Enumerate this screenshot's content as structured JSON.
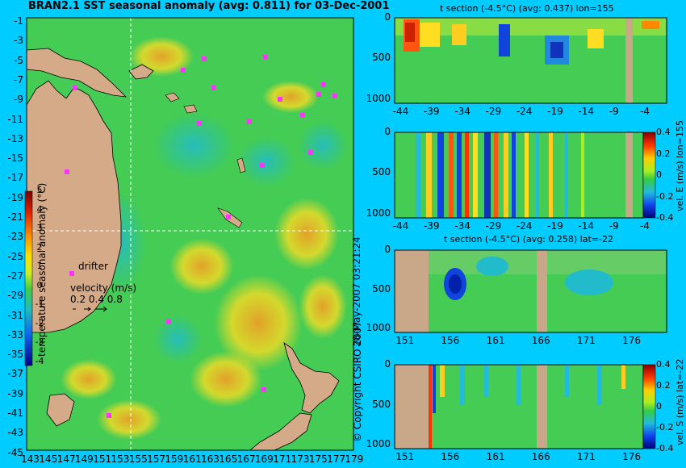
{
  "colors": {
    "background": "#00ccff",
    "land": "#d4aa88",
    "ocean": "#44cc55",
    "warm": "#ffdd22",
    "hot": "#ff5511",
    "cold": "#1144dd",
    "drifter": "#ff33ff",
    "crosshair": "#ffffff"
  },
  "map": {
    "title": "BRAN2.1 SST seasonal anomaly (avg: 0.811) for 03-Dec-2001",
    "lat_labels": [
      "-1",
      "-3",
      "-5",
      "-7",
      "-9",
      "-11",
      "-13",
      "-15",
      "-17",
      "-19",
      "-21",
      "-23",
      "-25",
      "-27",
      "-29",
      "-31",
      "-33",
      "-35",
      "-37",
      "-39",
      "-41",
      "-43",
      "-45"
    ],
    "lon_labels": [
      "143",
      "145",
      "147",
      "149",
      "151",
      "153",
      "155",
      "157",
      "159",
      "161",
      "163",
      "165",
      "167",
      "169",
      "171",
      "173",
      "175",
      "177",
      "179"
    ],
    "colorbar": {
      "label": "temperature seasonal anomaly (°C)",
      "ticks": [
        "5",
        "4",
        "3",
        "2",
        "1",
        "0",
        "-1",
        "-2",
        "-3",
        "-4"
      ],
      "range": [
        -4,
        5
      ]
    },
    "drifter_label": "drifter",
    "velocity_label": "velocity (m/s)",
    "velocity_ticks": "0.2 0.4 0.8",
    "crosshair": {
      "lon": 155,
      "lat": -22
    }
  },
  "side_text": {
    "timestamp": "28-May-2007 03:21:24",
    "copyright": "© Copyright CSIRO 2007"
  },
  "chart_data": [
    {
      "type": "heatmap",
      "title": "t section (-4.5°C) (avg: 0.437) lon=155",
      "x_ticks": [
        "-44",
        "-39",
        "-34",
        "-29",
        "-24",
        "-19",
        "-14",
        "-9",
        "-4"
      ],
      "y_ticks": [
        "0",
        "500",
        "1000"
      ],
      "xlim": [
        -45,
        -1
      ],
      "ylim": [
        1050,
        0
      ],
      "colorbar_label": "",
      "land_columns": [
        [
          -6.5,
          -5.0
        ]
      ]
    },
    {
      "type": "heatmap",
      "title": "",
      "x_ticks": [
        "-44",
        "-39",
        "-34",
        "-29",
        "-24",
        "-19",
        "-14",
        "-9",
        "-4"
      ],
      "y_ticks": [
        "0",
        "500",
        "1000"
      ],
      "xlim": [
        -45,
        -1
      ],
      "ylim": [
        1050,
        0
      ],
      "colorbar_label": "vel. E (m/s) lon=155",
      "colorbar_ticks": [
        "0.4",
        "0.2",
        "0",
        "-0.2",
        "-0.4"
      ],
      "land_columns": [
        [
          -6.5,
          -5.0
        ]
      ]
    },
    {
      "type": "heatmap",
      "title": "t section (-4.5°C) (avg: 0.258) lat=-22",
      "x_ticks": [
        "151",
        "156",
        "161",
        "166",
        "171",
        "176"
      ],
      "y_ticks": [
        "0",
        "500",
        "1000"
      ],
      "xlim": [
        150,
        180
      ],
      "ylim": [
        1050,
        0
      ],
      "colorbar_label": "",
      "land_columns": [
        [
          150,
          153.5
        ],
        [
          165.8,
          167.2
        ]
      ]
    },
    {
      "type": "heatmap",
      "title": "",
      "x_ticks": [
        "151",
        "156",
        "161",
        "166",
        "171",
        "176"
      ],
      "y_ticks": [
        "0",
        "500",
        "1000"
      ],
      "xlim": [
        150,
        180
      ],
      "ylim": [
        1050,
        0
      ],
      "colorbar_label": "vel. S (m/s) lat=-22",
      "colorbar_ticks": [
        "0.4",
        "0.2",
        "0",
        "-0.2",
        "-0.4"
      ],
      "land_columns": [
        [
          150,
          153.5
        ],
        [
          165.8,
          167.2
        ]
      ]
    }
  ]
}
